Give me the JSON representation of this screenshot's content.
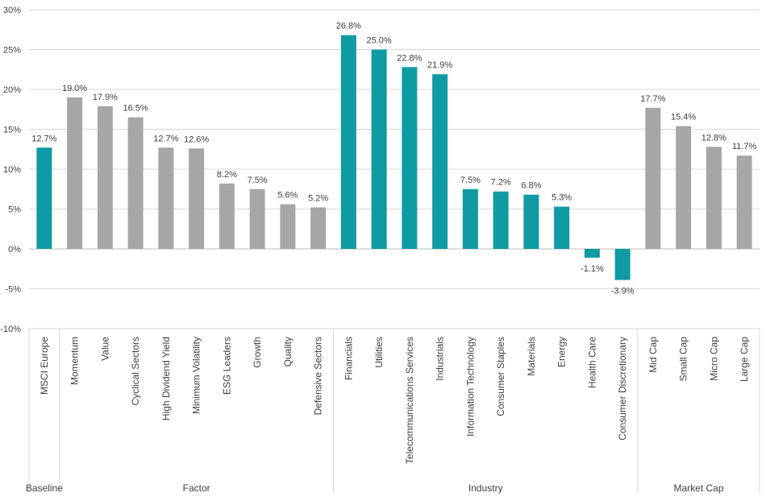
{
  "colors": {
    "teal": "#0f9ba3",
    "gray": "#a6a6a6",
    "grid": "#d9d9d9",
    "axis": "#bfbfbf",
    "text": "#404040"
  },
  "chart_data": {
    "type": "bar",
    "ylim": [
      -10,
      30
    ],
    "ytick_step": 5,
    "yticks": [
      "-10%",
      "-5%",
      "0%",
      "5%",
      "10%",
      "15%",
      "20%",
      "25%",
      "30%"
    ],
    "grid": true,
    "legend": "none",
    "categories": [
      "MSCI Europe",
      "Momentum",
      "Value",
      "Cyclical Sectors",
      "High Dividend Yield",
      "Minimum Volatility",
      "ESG Leaders",
      "Growth",
      "Quality",
      "Defensive Sectors",
      "Financials",
      "Utilities",
      "Telecommunications Services",
      "Industrials",
      "Information Technology",
      "Consumer Staples",
      "Materials",
      "Energy",
      "Health Care",
      "Consumer Discretionary",
      "Mid Cap",
      "Small Cap",
      "Micro Cap",
      "Large Cap"
    ],
    "values": [
      12.7,
      19.0,
      17.9,
      16.5,
      12.7,
      12.6,
      8.2,
      7.5,
      5.6,
      5.2,
      26.8,
      25.0,
      22.8,
      21.9,
      7.5,
      7.2,
      6.8,
      5.3,
      -1.1,
      -3.9,
      17.7,
      15.4,
      12.8,
      11.7
    ],
    "data_labels": [
      "12.7%",
      "19.0%",
      "17.9%",
      "16.5%",
      "12.7%",
      "12.6%",
      "8.2%",
      "7.5%",
      "5.6%",
      "5.2%",
      "26.8%",
      "25.0%",
      "22.8%",
      "21.9%",
      "7.5%",
      "7.2%",
      "6.8%",
      "5.3%",
      "-1.1%",
      "-3.9%",
      "17.7%",
      "15.4%",
      "12.8%",
      "11.7%"
    ],
    "bar_colors": [
      "teal",
      "gray",
      "gray",
      "gray",
      "gray",
      "gray",
      "gray",
      "gray",
      "gray",
      "gray",
      "teal",
      "teal",
      "teal",
      "teal",
      "teal",
      "teal",
      "teal",
      "teal",
      "teal",
      "teal",
      "gray",
      "gray",
      "gray",
      "gray"
    ],
    "groups": [
      {
        "name": "Baseline",
        "count": 1
      },
      {
        "name": "Factor",
        "count": 9
      },
      {
        "name": "Industry",
        "count": 10
      },
      {
        "name": "Market Cap",
        "count": 4
      }
    ]
  }
}
